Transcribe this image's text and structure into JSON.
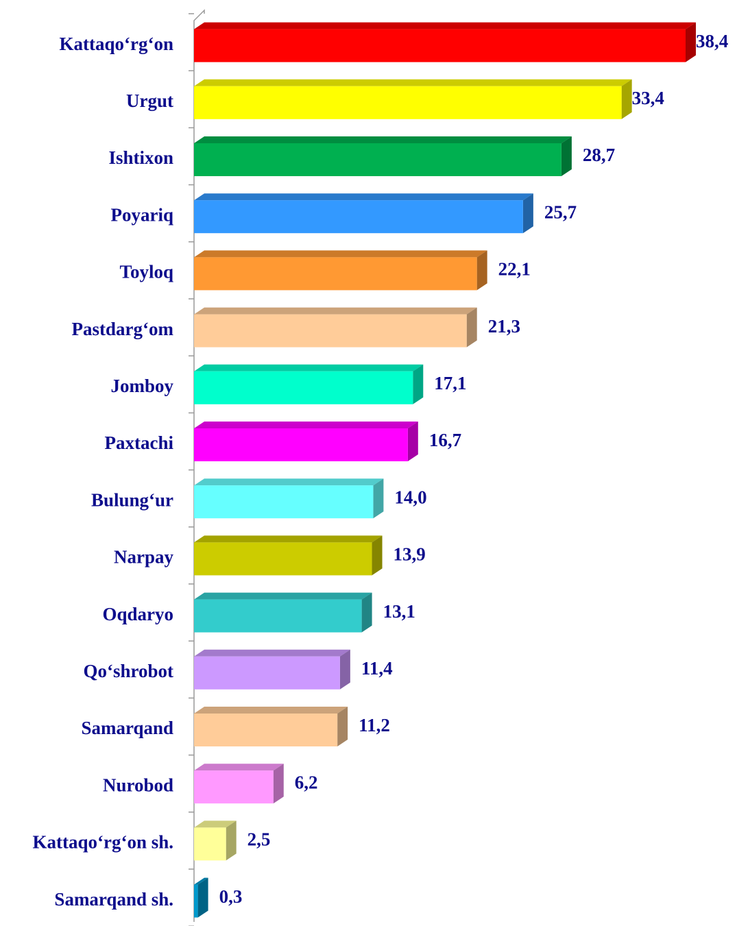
{
  "chart_data": {
    "type": "bar",
    "orientation": "horizontal",
    "categories": [
      "Kattaqo‘rg‘on",
      "Urgut",
      "Ishtixon",
      "Poyariq",
      "Toyloq",
      "Pastdarg‘om",
      "Jomboy",
      "Paxtachi",
      "Bulung‘ur",
      "Narpay",
      "Oqdaryo",
      "Qo‘shrobot",
      "Samarqand",
      "Nurobod",
      "Kattaqo‘rg‘on sh.",
      "Samarqand sh."
    ],
    "values": [
      38.4,
      33.4,
      28.7,
      25.7,
      22.1,
      21.3,
      17.1,
      16.7,
      14.0,
      13.9,
      13.1,
      11.4,
      11.2,
      6.2,
      2.5,
      0.3
    ],
    "value_labels": [
      "38,4",
      "33,4",
      "28,7",
      "25,7",
      "22,1",
      "21,3",
      "17,1",
      "16,7",
      "14,0",
      "13,9",
      "13,1",
      "11,4",
      "11,2",
      "6,2",
      "2,5",
      "0,3"
    ],
    "colors": [
      "#ff0000",
      "#ffff00",
      "#00b050",
      "#3399ff",
      "#ff9933",
      "#ffcc99",
      "#00ffcc",
      "#ff00ff",
      "#66ffff",
      "#cccc00",
      "#33cccc",
      "#cc99ff",
      "#ffcc99",
      "#ff99ff",
      "#ffff99",
      "#0099cc"
    ]
  }
}
